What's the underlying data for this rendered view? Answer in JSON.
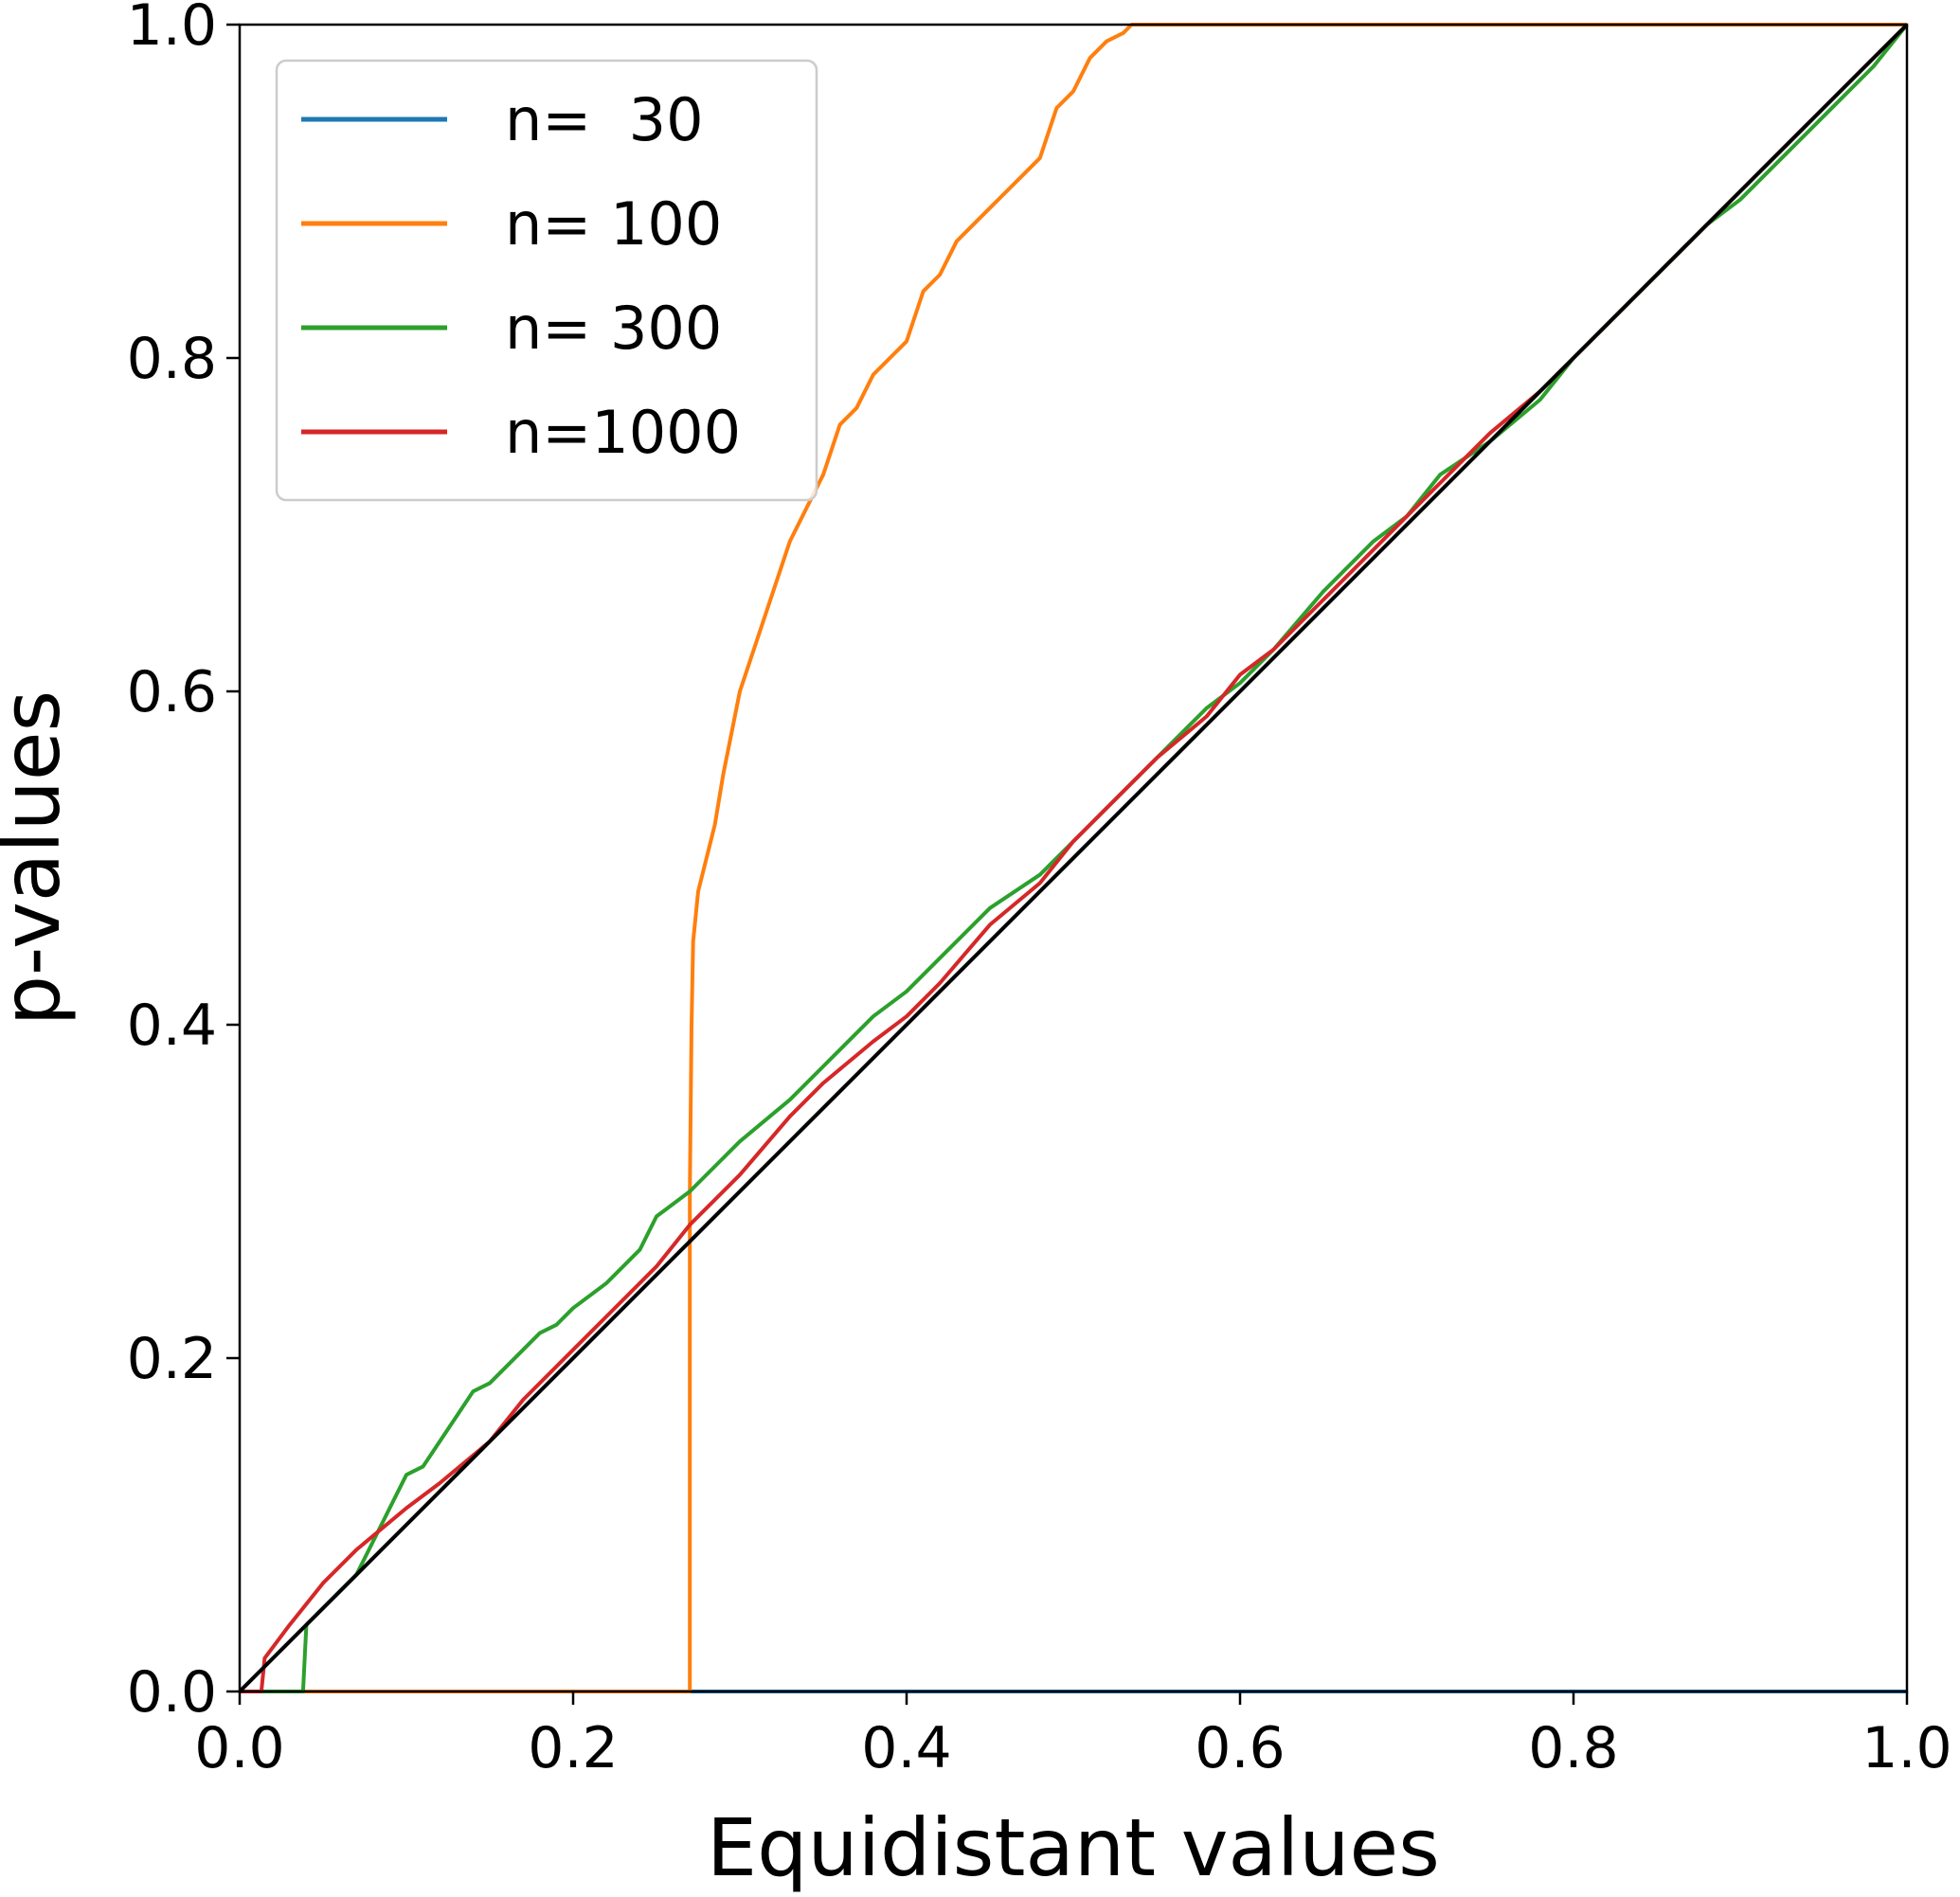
{
  "chart_data": {
    "type": "line",
    "xlabel": "Equidistant values",
    "ylabel": "p-values",
    "xlim": [
      0.0,
      1.0
    ],
    "ylim": [
      0.0,
      1.0
    ],
    "x_ticks": [
      0.0,
      0.2,
      0.4,
      0.6,
      0.8,
      1.0
    ],
    "y_ticks": [
      0.0,
      0.2,
      0.4,
      0.6,
      0.8,
      1.0
    ],
    "x_tick_labels": [
      "0.0",
      "0.2",
      "0.4",
      "0.6",
      "0.8",
      "1.0"
    ],
    "y_tick_labels": [
      "0.0",
      "0.2",
      "0.4",
      "0.6",
      "0.8",
      "1.0"
    ],
    "grid": false,
    "legend_position": "top-left",
    "reference_line": {
      "x": [
        0.0,
        1.0
      ],
      "y": [
        0.0,
        1.0
      ],
      "color": "#000000"
    },
    "series": [
      {
        "name": "n=  30",
        "color": "#1f77b4",
        "x": [
          0.0,
          1.0
        ],
        "y": [
          0.0,
          0.0
        ]
      },
      {
        "name": "n= 100",
        "color": "#ff7f0e",
        "x": [
          0.0,
          0.27,
          0.27,
          0.271,
          0.272,
          0.275,
          0.28,
          0.285,
          0.29,
          0.3,
          0.31,
          0.32,
          0.33,
          0.34,
          0.35,
          0.36,
          0.37,
          0.38,
          0.39,
          0.4,
          0.41,
          0.42,
          0.43,
          0.44,
          0.45,
          0.46,
          0.47,
          0.48,
          0.49,
          0.5,
          0.51,
          0.52,
          0.53,
          0.535,
          0.6,
          0.7,
          0.8,
          0.9,
          1.0
        ],
        "y": [
          0.0,
          0.0,
          0.3,
          0.4,
          0.45,
          0.48,
          0.5,
          0.52,
          0.55,
          0.6,
          0.63,
          0.66,
          0.69,
          0.71,
          0.73,
          0.76,
          0.77,
          0.79,
          0.8,
          0.81,
          0.84,
          0.85,
          0.87,
          0.88,
          0.89,
          0.9,
          0.91,
          0.92,
          0.95,
          0.96,
          0.98,
          0.99,
          0.995,
          1.0,
          1.0,
          1.0,
          1.0,
          1.0,
          1.0
        ]
      },
      {
        "name": "n= 300",
        "color": "#2ca02c",
        "x": [
          0.0,
          0.038,
          0.04,
          0.05,
          0.06,
          0.07,
          0.08,
          0.09,
          0.1,
          0.11,
          0.12,
          0.13,
          0.14,
          0.15,
          0.16,
          0.17,
          0.18,
          0.19,
          0.2,
          0.22,
          0.24,
          0.25,
          0.27,
          0.3,
          0.33,
          0.35,
          0.38,
          0.4,
          0.42,
          0.45,
          0.48,
          0.5,
          0.52,
          0.55,
          0.58,
          0.6,
          0.62,
          0.65,
          0.68,
          0.7,
          0.72,
          0.75,
          0.78,
          0.8,
          0.82,
          0.85,
          0.88,
          0.9,
          0.92,
          0.95,
          0.98,
          1.0
        ],
        "y": [
          0.0,
          0.0,
          0.04,
          0.05,
          0.06,
          0.07,
          0.09,
          0.11,
          0.13,
          0.135,
          0.15,
          0.165,
          0.18,
          0.185,
          0.195,
          0.205,
          0.215,
          0.22,
          0.23,
          0.245,
          0.265,
          0.285,
          0.3,
          0.33,
          0.355,
          0.375,
          0.405,
          0.42,
          0.44,
          0.47,
          0.49,
          0.51,
          0.53,
          0.56,
          0.59,
          0.605,
          0.625,
          0.66,
          0.69,
          0.705,
          0.73,
          0.75,
          0.775,
          0.8,
          0.82,
          0.85,
          0.88,
          0.895,
          0.915,
          0.945,
          0.975,
          1.0
        ]
      },
      {
        "name": "n=1000",
        "color": "#d62728",
        "x": [
          0.0,
          0.013,
          0.015,
          0.03,
          0.05,
          0.07,
          0.1,
          0.12,
          0.15,
          0.17,
          0.2,
          0.22,
          0.25,
          0.27,
          0.3,
          0.33,
          0.35,
          0.38,
          0.4,
          0.42,
          0.45,
          0.48,
          0.5,
          0.52,
          0.55,
          0.58,
          0.6,
          0.62,
          0.65,
          0.68,
          0.7,
          0.72,
          0.75,
          0.78,
          0.8,
          0.82,
          0.85,
          0.88,
          0.9,
          0.92,
          0.95,
          0.98,
          1.0
        ],
        "y": [
          0.0,
          0.0,
          0.02,
          0.04,
          0.065,
          0.085,
          0.11,
          0.125,
          0.15,
          0.175,
          0.205,
          0.225,
          0.255,
          0.28,
          0.31,
          0.345,
          0.365,
          0.39,
          0.405,
          0.425,
          0.46,
          0.485,
          0.51,
          0.53,
          0.56,
          0.585,
          0.61,
          0.625,
          0.655,
          0.685,
          0.705,
          0.725,
          0.755,
          0.78,
          0.8,
          0.82,
          0.85,
          0.88,
          0.9,
          0.92,
          0.95,
          0.98,
          1.0
        ]
      }
    ]
  }
}
